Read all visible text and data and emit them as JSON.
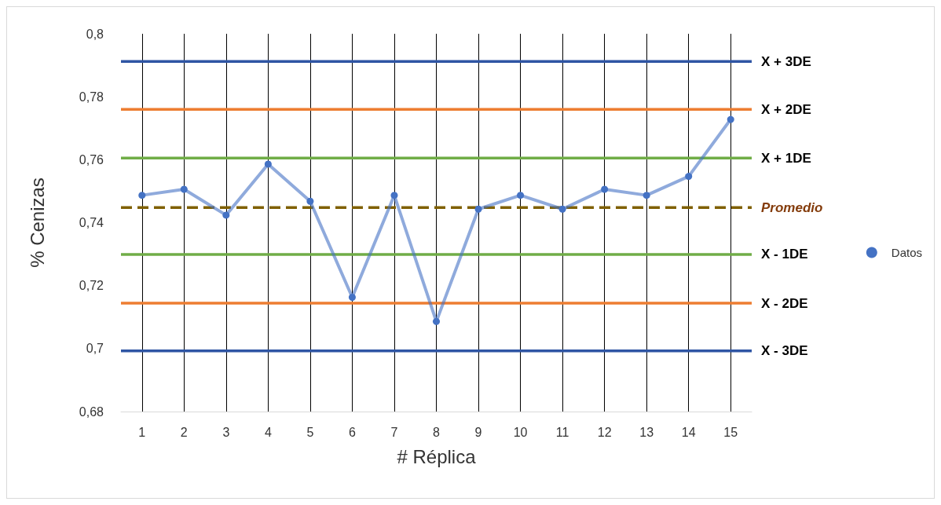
{
  "chart_data": {
    "type": "line",
    "xlabel": "# Réplica",
    "ylabel": "% Cenizas",
    "x": [
      1,
      2,
      3,
      4,
      5,
      6,
      7,
      8,
      9,
      10,
      11,
      12,
      13,
      14,
      15
    ],
    "xlim": [
      0.5,
      15.5
    ],
    "xticks": [
      1,
      2,
      3,
      4,
      5,
      6,
      7,
      8,
      9,
      10,
      11,
      12,
      13,
      14,
      15
    ],
    "ylim": [
      0.68,
      0.8
    ],
    "yticks": [
      {
        "value": 0.68,
        "label": "0,68"
      },
      {
        "value": 0.7,
        "label": "0,7"
      },
      {
        "value": 0.72,
        "label": "0,72"
      },
      {
        "value": 0.74,
        "label": "0,74"
      },
      {
        "value": 0.76,
        "label": "0,76"
      },
      {
        "value": 0.78,
        "label": "0,78"
      },
      {
        "value": 0.8,
        "label": "0,8"
      }
    ],
    "series": [
      {
        "name": "Datos",
        "color": "#4472c4",
        "values": [
          0.7487,
          0.7506,
          0.7424,
          0.7586,
          0.7468,
          0.7163,
          0.7487,
          0.7086,
          0.7443,
          0.7487,
          0.7443,
          0.7506,
          0.7487,
          0.7547,
          0.7728
        ]
      }
    ],
    "ref_lines": [
      {
        "axis": "y",
        "value": 0.7912,
        "label": "X + 3DE",
        "color": "#2f55a4",
        "line_style": "solid"
      },
      {
        "axis": "y",
        "value": 0.776,
        "label": "X + 2DE",
        "color": "#ed7d31",
        "line_style": "solid"
      },
      {
        "axis": "y",
        "value": 0.7605,
        "label": "X + 1DE",
        "color": "#70ad47",
        "line_style": "solid"
      },
      {
        "axis": "y",
        "value": 0.7448,
        "label": "Promedio",
        "color": "#7f6000",
        "line_style": "dashed"
      },
      {
        "axis": "y",
        "value": 0.7299,
        "label": "X - 1DE",
        "color": "#70ad47",
        "line_style": "solid"
      },
      {
        "axis": "y",
        "value": 0.7144,
        "label": "X - 2DE",
        "color": "#ed7d31",
        "line_style": "solid"
      },
      {
        "axis": "y",
        "value": 0.6993,
        "label": "X - 3DE",
        "color": "#2f55a4",
        "line_style": "solid"
      }
    ],
    "grid": "x",
    "legend": "right",
    "marker": "circle",
    "line_style": "solid"
  }
}
